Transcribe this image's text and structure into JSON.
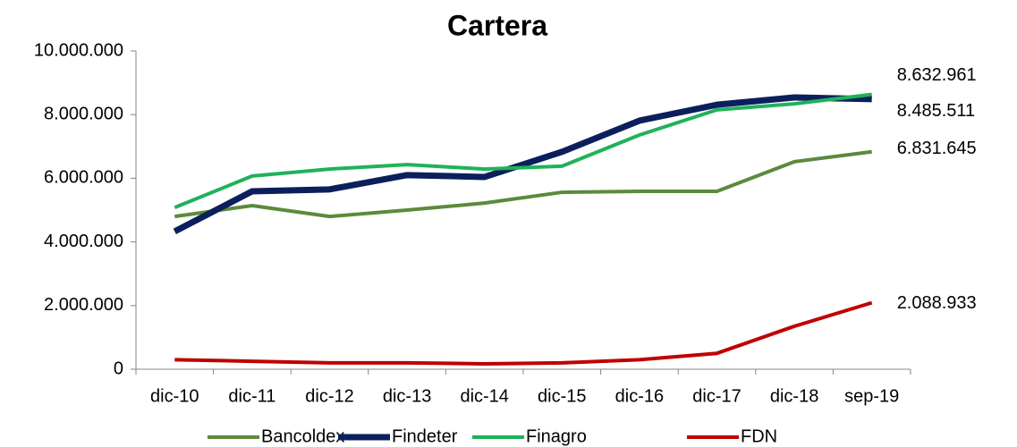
{
  "chart_data": {
    "type": "line",
    "title": "Cartera",
    "categories": [
      "dic-10",
      "dic-11",
      "dic-12",
      "dic-13",
      "dic-14",
      "dic-15",
      "dic-16",
      "dic-17",
      "dic-18",
      "sep-19"
    ],
    "series": [
      {
        "name": "Bancoldex",
        "color": "#5b8a3c",
        "values": [
          4800000,
          5140000,
          4800000,
          5000000,
          5220000,
          5560000,
          5590000,
          5590000,
          6520000,
          6831645
        ],
        "value_labels": [
          null,
          null,
          null,
          null,
          null,
          null,
          null,
          null,
          null,
          "6.831.645"
        ]
      },
      {
        "name": "Findeter",
        "color": "#0b1f5c",
        "values": [
          4330000,
          5590000,
          5650000,
          6100000,
          6040000,
          6830000,
          7810000,
          8310000,
          8540000,
          8485511
        ],
        "value_labels": [
          null,
          null,
          null,
          null,
          null,
          null,
          null,
          null,
          null,
          "8.485.511"
        ]
      },
      {
        "name": "Finagro",
        "color": "#1fb25a",
        "values": [
          5080000,
          6070000,
          6290000,
          6430000,
          6290000,
          6380000,
          7360000,
          8150000,
          8340000,
          8632961
        ],
        "value_labels": [
          null,
          null,
          null,
          null,
          null,
          null,
          null,
          null,
          null,
          "8.632.961"
        ]
      },
      {
        "name": "FDN",
        "color": "#c00000",
        "values": [
          300000,
          250000,
          200000,
          200000,
          170000,
          200000,
          300000,
          500000,
          1350000,
          2088933
        ],
        "value_labels": [
          null,
          null,
          null,
          null,
          null,
          null,
          null,
          null,
          null,
          "2.088.933"
        ]
      }
    ],
    "ylim": [
      0,
      10000000
    ],
    "yticks": [
      0,
      {
        "value": 2000000,
        "label": "2.000.000"
      },
      {
        "value": 4000000,
        "label": "4.000.000"
      },
      {
        "value": 6000000,
        "label": "6.000.000"
      },
      {
        "value": 8000000,
        "label": "8.000.000"
      },
      {
        "value": 10000000,
        "label": "10.000.000"
      }
    ],
    "grid": false,
    "legend": "bottom"
  }
}
